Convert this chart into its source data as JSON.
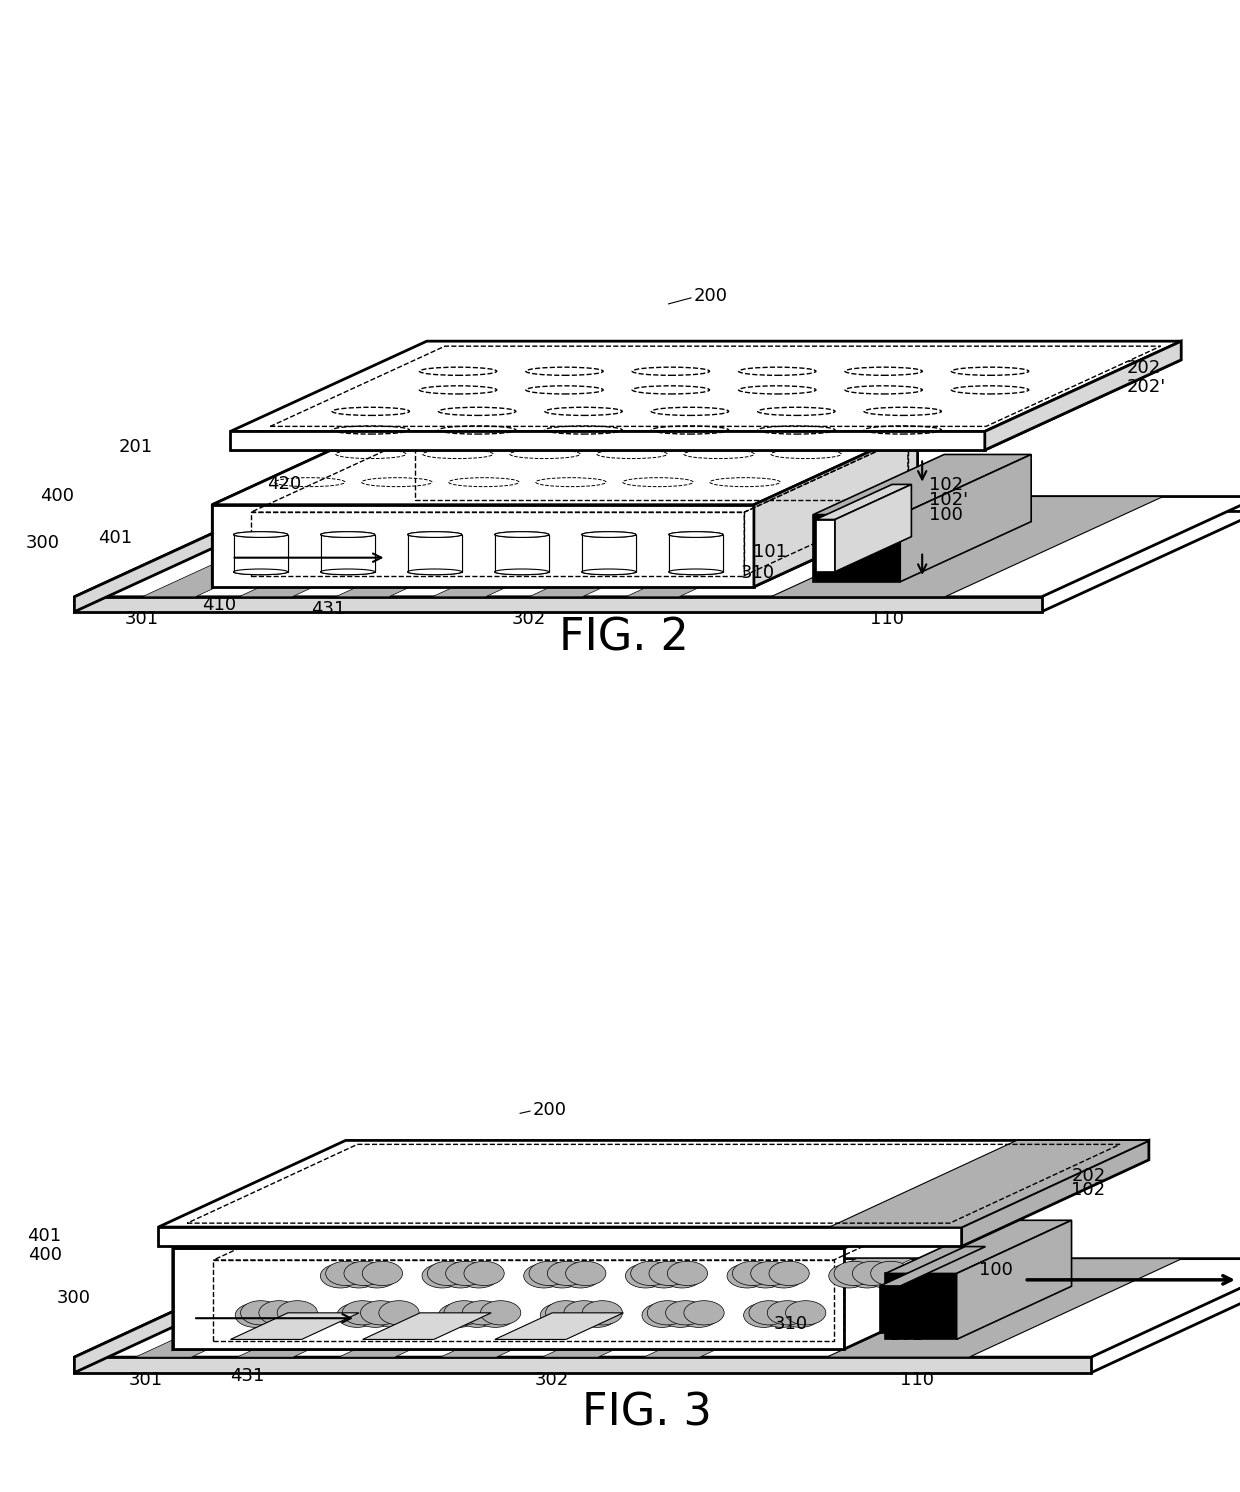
{
  "fig_width": 12.4,
  "fig_height": 14.92,
  "dpi": 100,
  "bg": "#ffffff",
  "lc": "#000000",
  "gc": "#b0b0b0",
  "lgc": "#d8d8d8",
  "fig2_title": "FIG. 2",
  "fig3_title": "FIG. 3",
  "title_fs": 32,
  "label_fs": 13
}
